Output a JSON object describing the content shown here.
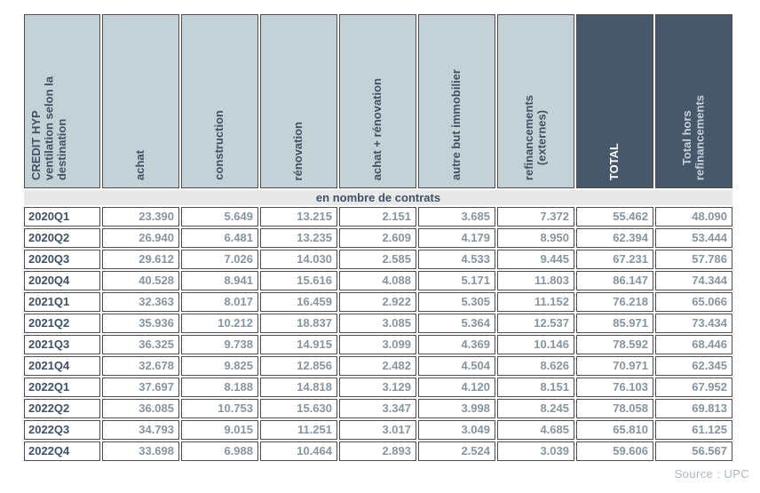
{
  "table": {
    "corner_header": "CREDIT HYP\nventilation selon la\ndestination",
    "columns": [
      {
        "label": "achat",
        "style": "light"
      },
      {
        "label": "construction",
        "style": "light"
      },
      {
        "label": "rénovation",
        "style": "light"
      },
      {
        "label": "achat + rénovation",
        "style": "light"
      },
      {
        "label": "autre but immobilier",
        "style": "light"
      },
      {
        "label": "refinancements\n(externes)",
        "style": "light"
      },
      {
        "label": "TOTAL",
        "style": "dark"
      },
      {
        "label": "Total hors\nrefinancements",
        "style": "dark"
      }
    ],
    "band_label": "en nombre de contrats",
    "rows": [
      {
        "quarter": "2020Q1",
        "values": [
          "23.390",
          "5.649",
          "13.215",
          "2.151",
          "3.685",
          "7.372",
          "55.462",
          "48.090"
        ]
      },
      {
        "quarter": "2020Q2",
        "values": [
          "26.940",
          "6.481",
          "13.235",
          "2.609",
          "4.179",
          "8.950",
          "62.394",
          "53.444"
        ]
      },
      {
        "quarter": "2020Q3",
        "values": [
          "29.612",
          "7.026",
          "14.030",
          "2.585",
          "4.533",
          "9.445",
          "67.231",
          "57.786"
        ]
      },
      {
        "quarter": "2020Q4",
        "values": [
          "40.528",
          "8.941",
          "15.616",
          "4.088",
          "5.171",
          "11.803",
          "86.147",
          "74.344"
        ]
      },
      {
        "quarter": "2021Q1",
        "values": [
          "32.363",
          "8.017",
          "16.459",
          "2.922",
          "5.305",
          "11.152",
          "76.218",
          "65.066"
        ]
      },
      {
        "quarter": "2021Q2",
        "values": [
          "35.936",
          "10.212",
          "18.837",
          "3.085",
          "5.364",
          "12.537",
          "85.971",
          "73.434"
        ]
      },
      {
        "quarter": "2021Q3",
        "values": [
          "36.325",
          "9.738",
          "14.915",
          "3.099",
          "4.369",
          "10.146",
          "78.592",
          "68.446"
        ]
      },
      {
        "quarter": "2021Q4",
        "values": [
          "32.678",
          "9.825",
          "12.856",
          "2.482",
          "4.504",
          "8.626",
          "70.971",
          "62.345"
        ]
      },
      {
        "quarter": "2022Q1",
        "values": [
          "37.697",
          "8.188",
          "14.818",
          "3.129",
          "4.120",
          "8.151",
          "76.103",
          "67.952"
        ]
      },
      {
        "quarter": "2022Q2",
        "values": [
          "36.085",
          "10.753",
          "15.630",
          "3.347",
          "3.998",
          "8.245",
          "78.058",
          "69.813"
        ]
      },
      {
        "quarter": "2022Q3",
        "values": [
          "34.793",
          "9.015",
          "11.251",
          "3.017",
          "3.049",
          "4.685",
          "65.810",
          "61.125"
        ]
      },
      {
        "quarter": "2022Q4",
        "values": [
          "33.698",
          "6.988",
          "10.464",
          "2.893",
          "2.524",
          "3.039",
          "59.606",
          "56.567"
        ]
      }
    ]
  },
  "footer": {
    "source_label": "Source : UPC"
  },
  "colors": {
    "header_light_bg": "#c4d2d8",
    "header_dark_bg": "#47586a",
    "header_text": "#3f5265",
    "total_header_text": "#ffffff",
    "band_bg": "#e8e8e8",
    "number_text": "#8795a1",
    "row_label_text": "#3f5265",
    "cell_border": "#4d4d4d",
    "source_text": "#aab7c3"
  }
}
